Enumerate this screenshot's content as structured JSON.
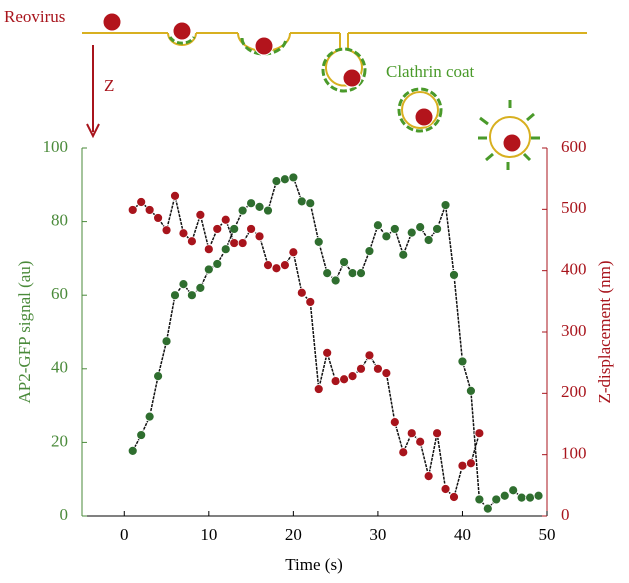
{
  "chart_data": {
    "type": "line",
    "annotations": {
      "virus": "Reovirus",
      "axis": "Z",
      "coat": "Clathrin coat"
    },
    "x_label": "Time (s)",
    "y_label": "AP2-GFP signal (au)",
    "y2_label": "Z-displacement (nm)",
    "x": [
      1,
      2,
      3,
      4,
      5,
      6,
      7,
      8,
      9,
      10,
      11,
      12,
      13,
      14,
      15,
      16,
      17,
      18,
      19,
      20,
      21,
      22,
      23,
      24,
      25,
      26,
      27,
      28,
      29,
      30,
      31,
      32,
      33,
      34,
      35,
      36,
      37,
      38,
      39,
      40,
      41,
      42,
      43,
      44,
      45,
      46,
      47,
      48,
      49
    ],
    "series": [
      {
        "color": "#2f6e2f",
        "values": [
          17.7,
          22,
          27,
          38,
          47.5,
          60,
          63,
          60,
          62,
          67,
          68.5,
          72.5,
          78,
          83,
          85,
          84,
          83,
          91,
          91.5,
          92,
          85.5,
          85,
          74.5,
          66,
          64,
          69,
          66,
          66,
          72,
          79,
          76,
          78,
          71,
          77,
          78.5,
          75,
          78,
          84.5,
          65.5,
          42,
          34,
          4.5,
          2,
          4.5,
          5.5,
          7,
          5,
          5,
          5.5
        ]
      },
      {
        "color": "#a8141c",
        "axis": "y2",
        "values": [
          499,
          512,
          499,
          486,
          466,
          522,
          461,
          448,
          491,
          435,
          468,
          483,
          445,
          445,
          468,
          456,
          409,
          404,
          409,
          430,
          364,
          349,
          207,
          266,
          220,
          223,
          228,
          240,
          262,
          240,
          233,
          153,
          104,
          135,
          121,
          65,
          135,
          44,
          31,
          82,
          86,
          135,
          null,
          null,
          null,
          null,
          null,
          null,
          null
        ]
      }
    ],
    "xlim": [
      -5,
      50
    ],
    "xticks": [
      0,
      10,
      20,
      30,
      40,
      50
    ],
    "ylim": [
      0,
      100
    ],
    "yticks": [
      0,
      20,
      40,
      60,
      80,
      100
    ],
    "y2lim": [
      0,
      600
    ],
    "y2ticks": [
      0,
      100,
      200,
      300,
      400,
      500,
      600
    ],
    "y_color": "#4a8a3a",
    "y2_color": "#a8141c"
  }
}
